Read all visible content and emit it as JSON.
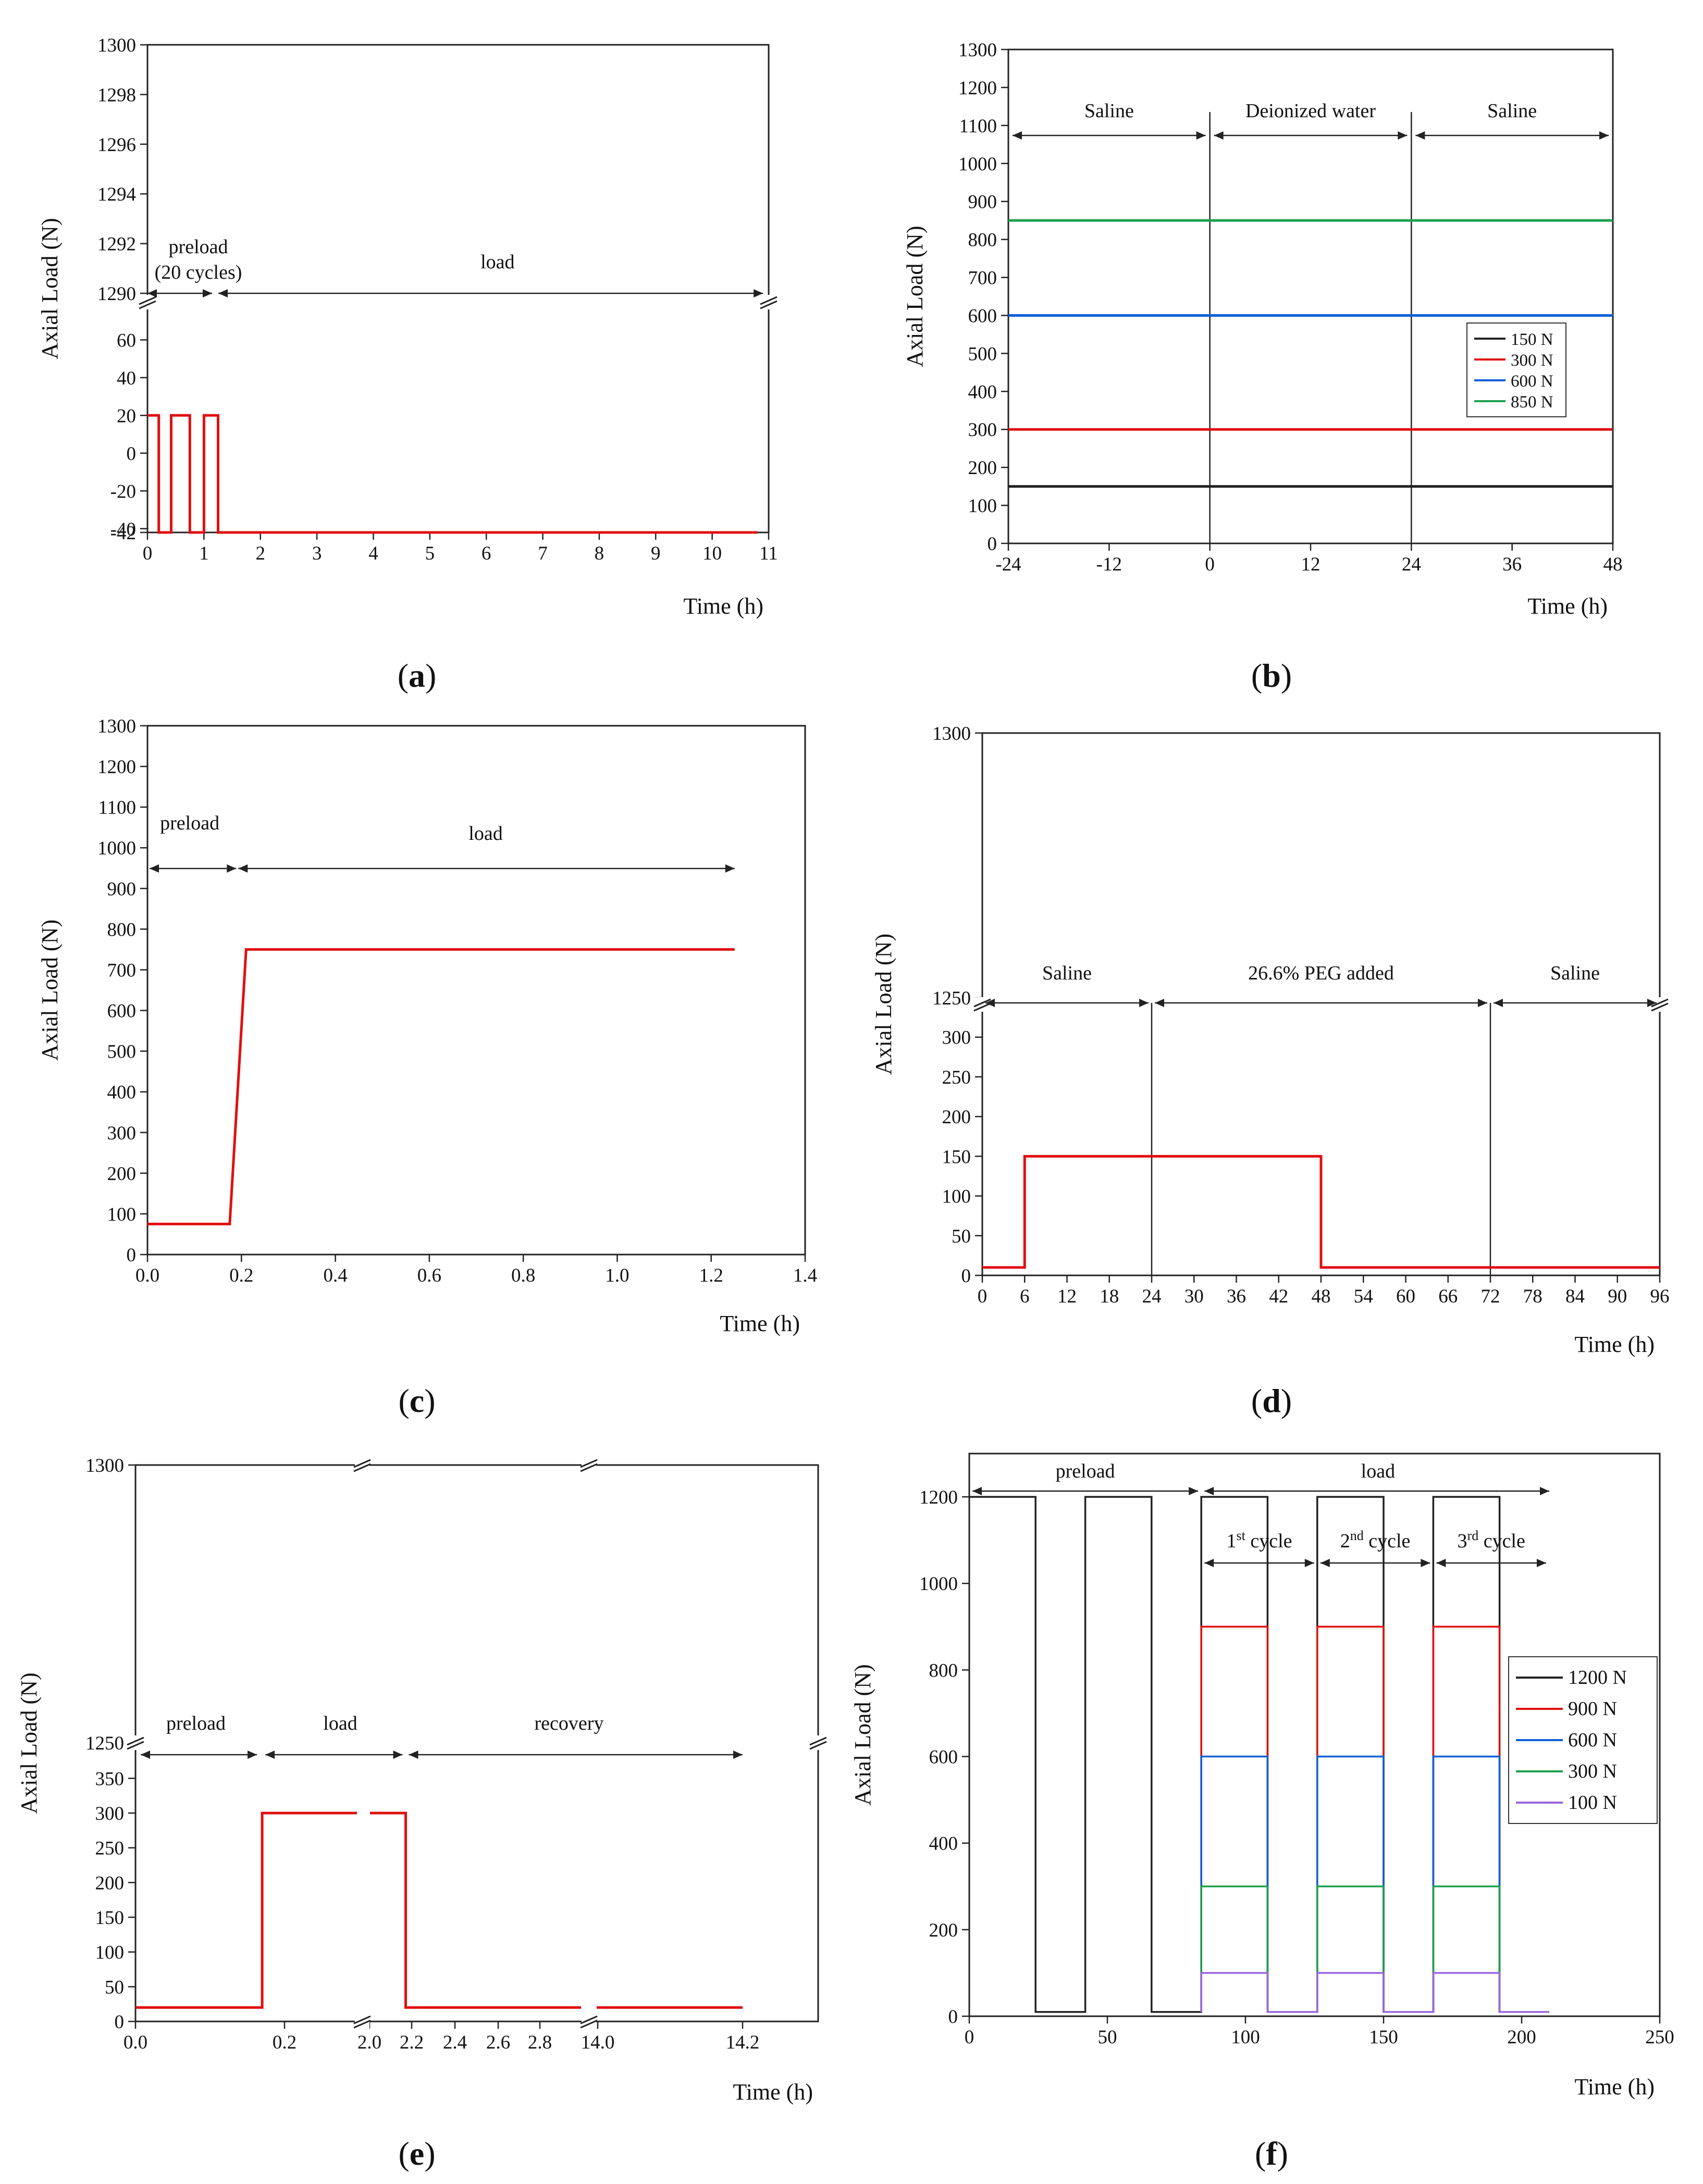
{
  "panels": [
    {
      "id": "a",
      "label_text": "a"
    },
    {
      "id": "b",
      "label_text": "b"
    },
    {
      "id": "c",
      "label_text": "c"
    },
    {
      "id": "d",
      "label_text": "d"
    },
    {
      "id": "e",
      "label_text": "e"
    },
    {
      "id": "f",
      "label_text": "f"
    }
  ],
  "chart_data": [
    {
      "id": "a",
      "type": "line",
      "xlabel": "Time (h)",
      "ylabel": "Axial Load (N)",
      "xlim": [
        0,
        11
      ],
      "x_ticks": [
        "0",
        "1",
        "2",
        "3",
        "4",
        "5",
        "6",
        "7",
        "8",
        "9",
        "10",
        "11"
      ],
      "y_ticks_upper": [
        "1290",
        "1292",
        "1294",
        "1296",
        "1298",
        "1300"
      ],
      "y_ticks_lower": [
        "-42",
        "-40",
        "-20",
        "0",
        "20",
        "40",
        "60"
      ],
      "ylim_lower": [
        -42,
        75
      ],
      "ylim_upper": [
        1290,
        1300
      ],
      "annotations": [
        {
          "text": "preload",
          "x0": 0,
          "x1": 1.2,
          "line2": "(20 cycles)"
        },
        {
          "text": "load",
          "x0": 1.2,
          "x1": 10.9
        }
      ],
      "series": [
        {
          "color": "#e01010",
          "points": [
            [
              0,
              20
            ],
            [
              0.2,
              20
            ],
            [
              0.2,
              -42
            ],
            [
              0.42,
              -42
            ],
            [
              0.42,
              20
            ],
            [
              0.75,
              20
            ],
            [
              0.75,
              -42
            ],
            [
              1.0,
              -42
            ],
            [
              1.0,
              20
            ],
            [
              1.25,
              20
            ],
            [
              1.25,
              -42
            ],
            [
              10.8,
              -42
            ]
          ]
        }
      ]
    },
    {
      "id": "b",
      "type": "line",
      "xlabel": "Time (h)",
      "ylabel": "Axial Load (N)",
      "xlim": [
        -24,
        48
      ],
      "ylim": [
        0,
        1300
      ],
      "x_ticks": [
        "-24",
        "-12",
        "0",
        "12",
        "24",
        "36",
        "48"
      ],
      "y_ticks": [
        "0",
        "100",
        "200",
        "300",
        "400",
        "500",
        "600",
        "700",
        "800",
        "900",
        "1000",
        "1100",
        "1200",
        "1300"
      ],
      "vlines": [
        0,
        24
      ],
      "annotations": [
        {
          "text": "Saline",
          "x0": -24,
          "x1": 0
        },
        {
          "text": "Deionized water",
          "x0": 0,
          "x1": 24
        },
        {
          "text": "Saline",
          "x0": 24,
          "x1": 48
        }
      ],
      "legend": "right",
      "series": [
        {
          "name": "150 N",
          "color": "#222222",
          "value": 150
        },
        {
          "name": "300 N",
          "color": "#e01010",
          "value": 300
        },
        {
          "name": "600 N",
          "color": "#1060d8",
          "value": 600
        },
        {
          "name": "850 N",
          "color": "#20a050",
          "value": 850
        }
      ]
    },
    {
      "id": "c",
      "type": "line",
      "xlabel": "Time (h)",
      "ylabel": "Axial Load (N)",
      "xlim": [
        0,
        1.4
      ],
      "ylim": [
        0,
        1300
      ],
      "x_ticks": [
        "0.0",
        "0.2",
        "0.4",
        "0.6",
        "0.8",
        "1.0",
        "1.2",
        "1.4"
      ],
      "y_ticks": [
        "0",
        "100",
        "200",
        "300",
        "400",
        "500",
        "600",
        "700",
        "800",
        "900",
        "1000",
        "1100",
        "1200",
        "1300"
      ],
      "annotations": [
        {
          "text": "preload",
          "x0": 0,
          "x1": 0.2
        },
        {
          "text": "load",
          "x0": 0.2,
          "x1": 1.25
        }
      ],
      "series": [
        {
          "color": "#e01010",
          "points": [
            [
              0,
              75
            ],
            [
              0.175,
              75
            ],
            [
              0.21,
              750
            ],
            [
              1.25,
              750
            ]
          ]
        }
      ]
    },
    {
      "id": "d",
      "type": "line",
      "xlabel": "Time (h)",
      "ylabel": "Axial Load (N)",
      "xlim": [
        0,
        96
      ],
      "x_ticks": [
        "0",
        "6",
        "12",
        "18",
        "24",
        "30",
        "36",
        "42",
        "48",
        "54",
        "60",
        "66",
        "72",
        "78",
        "84",
        "90",
        "96"
      ],
      "y_ticks_lower": [
        "0",
        "50",
        "100",
        "150",
        "200",
        "250",
        "300"
      ],
      "y_ticks_upper": [
        "1250",
        "1300"
      ],
      "ylim_lower": [
        0,
        330
      ],
      "ylim_upper": [
        1250,
        1300
      ],
      "vlines": [
        24,
        72
      ],
      "annotations": [
        {
          "text": "Saline",
          "x0": 0,
          "x1": 24
        },
        {
          "text": "26.6% PEG added",
          "x0": 24,
          "x1": 72
        },
        {
          "text": "Saline",
          "x0": 72,
          "x1": 96
        }
      ],
      "series": [
        {
          "color": "#e01010",
          "points": [
            [
              0,
              10
            ],
            [
              6,
              10
            ],
            [
              6,
              150
            ],
            [
              48,
              150
            ],
            [
              48,
              10
            ],
            [
              96,
              10
            ]
          ]
        }
      ]
    },
    {
      "id": "e",
      "type": "line",
      "xlabel": "Time (h)",
      "ylabel": "Axial Load (N)",
      "x_ticks": [
        "0.0",
        "0.2",
        "2.0",
        "2.2",
        "2.4",
        "2.6",
        "2.8",
        "14.0",
        "14.2"
      ],
      "y_ticks_lower": [
        "0",
        "50",
        "100",
        "150",
        "200",
        "250",
        "300",
        "350"
      ],
      "y_ticks_upper": [
        "1250",
        "1300"
      ],
      "ylim_lower": [
        0,
        390
      ],
      "ylim_upper": [
        1250,
        1300
      ],
      "annotations": [
        {
          "text": "preload",
          "x0": 0,
          "x1": 0.17
        },
        {
          "text": "load",
          "x0": 0.17,
          "x1": 2.17
        },
        {
          "text": "recovery",
          "x0": 2.17,
          "x1": 14.2
        }
      ],
      "series": [
        {
          "color": "#e01010",
          "points": [
            [
              0,
              20
            ],
            [
              0.17,
              20
            ],
            [
              0.17,
              300
            ],
            [
              2.17,
              300
            ],
            [
              2.17,
              20
            ],
            [
              14.2,
              20
            ]
          ]
        }
      ]
    },
    {
      "id": "f",
      "type": "line",
      "xlabel": "Time (h)",
      "ylabel": "Axial Load (N)",
      "xlim": [
        0,
        250
      ],
      "ylim": [
        0,
        1300
      ],
      "x_ticks": [
        "0",
        "50",
        "100",
        "150",
        "200",
        "250"
      ],
      "y_ticks": [
        "0",
        "200",
        "400",
        "600",
        "800",
        "1000",
        "1200"
      ],
      "annotations": [
        {
          "text": "preload",
          "x0": 0,
          "x1": 84
        },
        {
          "text": "load",
          "x0": 84,
          "x1": 210
        }
      ],
      "cycle_labels": [
        {
          "ord": "1",
          "sup": "st",
          "word": " cycle",
          "x0": 84,
          "x1": 126
        },
        {
          "ord": "2",
          "sup": "nd",
          "word": " cycle",
          "x0": 126,
          "x1": 168
        },
        {
          "ord": "3",
          "sup": "rd",
          "word": " cycle",
          "x0": 168,
          "x1": 210
        }
      ],
      "legend": "right",
      "series": [
        {
          "name": "1200 N",
          "color": "#222222",
          "value": 1200
        },
        {
          "name": "900 N",
          "color": "#e01010",
          "value": 900
        },
        {
          "name": "600 N",
          "color": "#1060d8",
          "value": 600
        },
        {
          "name": "300 N",
          "color": "#20a050",
          "value": 300
        },
        {
          "name": "100 N",
          "color": "#9966dd",
          "value": 100
        }
      ],
      "low_value": 10
    }
  ]
}
